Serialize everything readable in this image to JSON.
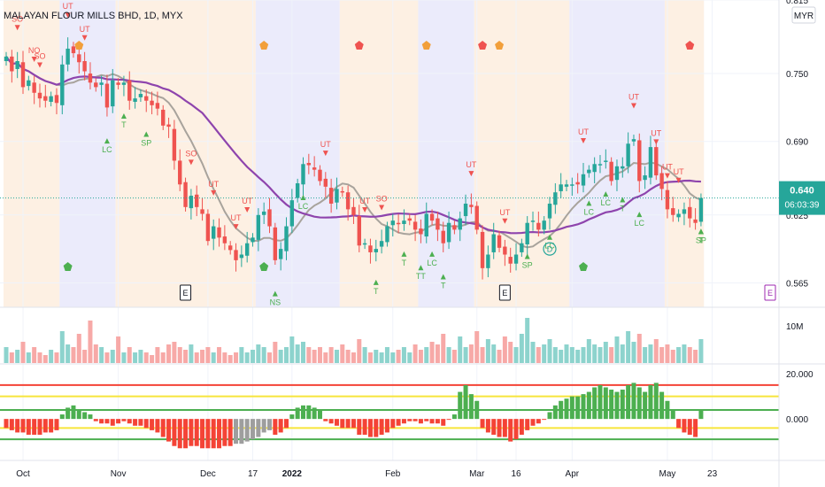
{
  "header": {
    "title": "MALAYAN FLOUR MILLS BHD, 1D, MYX",
    "currency_badge": "MYR"
  },
  "price_tag": {
    "value": "0.640",
    "countdown": "06:03:39",
    "color": "#26a69a"
  },
  "colors": {
    "up": "#26a69a",
    "down": "#ef5350",
    "ma_fast": "#a8a39c",
    "ma_slow": "#8e44ad",
    "band_orange": "#fdf0e3",
    "band_blue": "#ebebfb",
    "osc_green": "#4caf50",
    "osc_red": "#f44336",
    "osc_gray": "#9e9e9e",
    "line_red": "#f44336",
    "line_yellow": "#f7e53b",
    "line_green": "#4caf50"
  },
  "chart_data": [
    {
      "type": "candlestick",
      "panel": "price",
      "title": "MALAYAN FLOUR MILLS BHD, 1D, MYX",
      "y_ticks": [
        "0.815",
        "0.750",
        "0.690",
        "0.625",
        "0.565"
      ],
      "y_tick_values": [
        0.815,
        0.75,
        0.69,
        0.625,
        0.565
      ],
      "ylim": [
        0.545,
        0.815
      ],
      "last_value": 0.64,
      "x_tick_labels": [
        "Oct",
        "Nov",
        "Dec",
        "17",
        "2022",
        "Feb",
        "Mar",
        "16",
        "Apr",
        "May",
        "23"
      ],
      "x_tick_index": [
        3,
        20,
        36,
        44,
        51,
        69,
        84,
        91,
        101,
        118,
        126
      ],
      "close": [
        0.765,
        0.752,
        0.761,
        0.738,
        0.744,
        0.733,
        0.728,
        0.726,
        0.73,
        0.724,
        0.758,
        0.772,
        0.768,
        0.76,
        0.752,
        0.742,
        0.738,
        0.742,
        0.72,
        0.744,
        0.74,
        0.742,
        0.726,
        0.728,
        0.732,
        0.726,
        0.722,
        0.719,
        0.704,
        0.703,
        0.673,
        0.652,
        0.632,
        0.642,
        0.632,
        0.626,
        0.602,
        0.615,
        0.605,
        0.6,
        0.594,
        0.585,
        0.59,
        0.6,
        0.605,
        0.625,
        0.628,
        0.615,
        0.585,
        0.595,
        0.615,
        0.638,
        0.653,
        0.67,
        0.669,
        0.665,
        0.655,
        0.65,
        0.635,
        0.648,
        0.645,
        0.63,
        0.625,
        0.598,
        0.6,
        0.592,
        0.595,
        0.602,
        0.615,
        0.62,
        0.617,
        0.62,
        0.62,
        0.612,
        0.608,
        0.626,
        0.62,
        0.612,
        0.6,
        0.618,
        0.612,
        0.622,
        0.635,
        0.632,
        0.612,
        0.578,
        0.59,
        0.608,
        0.596,
        0.59,
        0.582,
        0.59,
        0.6,
        0.618,
        0.62,
        0.612,
        0.62,
        0.635,
        0.645,
        0.652,
        0.652,
        0.652,
        0.652,
        0.661,
        0.665,
        0.67,
        0.67,
        0.673,
        0.655,
        0.668,
        0.668,
        0.688,
        0.692,
        0.655,
        0.66,
        0.685,
        0.66,
        0.648,
        0.63,
        0.625,
        0.626,
        0.63,
        0.622,
        0.618,
        0.64
      ],
      "volume_ylim": [
        0,
        12000000
      ],
      "volume_tick": "10M",
      "volume_shape": [
        0.3,
        0.2,
        0.25,
        0.4,
        0.2,
        0.3,
        0.2,
        0.15,
        0.25,
        0.2,
        0.6,
        0.35,
        0.3,
        0.55,
        0.25,
        0.8,
        0.35,
        0.3,
        0.2,
        0.25,
        0.5,
        0.2,
        0.3,
        0.2,
        0.25,
        0.2,
        0.15,
        0.3,
        0.2,
        0.35,
        0.4,
        0.3,
        0.25,
        0.35,
        0.2,
        0.25,
        0.3,
        0.2,
        0.3,
        0.2,
        0.15,
        0.2,
        0.3,
        0.2,
        0.25,
        0.35,
        0.3,
        0.2,
        0.4,
        0.25,
        0.3,
        0.5,
        0.35,
        0.4,
        0.3,
        0.25,
        0.3,
        0.2,
        0.3,
        0.25,
        0.35,
        0.25,
        0.2,
        0.45,
        0.3,
        0.2,
        0.25,
        0.2,
        0.3,
        0.2,
        0.25,
        0.3,
        0.2,
        0.35,
        0.25,
        0.3,
        0.4,
        0.35,
        0.55,
        0.3,
        0.25,
        0.5,
        0.3,
        0.35,
        0.6,
        0.3,
        0.45,
        0.35,
        0.25,
        0.5,
        0.4,
        0.3,
        0.55,
        0.85,
        0.4,
        0.3,
        0.35,
        0.45,
        0.3,
        0.25,
        0.35,
        0.3,
        0.25,
        0.3,
        0.45,
        0.35,
        0.3,
        0.4,
        0.3,
        0.5,
        0.35,
        0.6,
        0.4,
        0.55,
        0.3,
        0.35,
        0.45,
        0.3,
        0.35,
        0.25,
        0.3,
        0.35,
        0.3,
        0.25,
        0.45
      ]
    },
    {
      "type": "bar",
      "panel": "oscillator",
      "y_ticks": [
        "20.000",
        "0.000"
      ],
      "y_tick_values": [
        20,
        0
      ],
      "ylim": [
        -18,
        24
      ],
      "reference_lines": [
        15,
        10,
        4,
        -4,
        -9
      ],
      "values": [
        -4,
        -5,
        -6,
        -6,
        -7,
        -7,
        -7,
        -6,
        -6,
        -5,
        2,
        5,
        6,
        4,
        3,
        2,
        -1,
        -2,
        -2,
        -3,
        -2,
        -1,
        -2,
        -3,
        -3,
        -4,
        -5,
        -6,
        -8,
        -10,
        -12,
        -13,
        -13,
        -12,
        -12,
        -13,
        -13,
        -13,
        -13,
        -12,
        -12,
        -11,
        -11,
        -10,
        -9,
        -8,
        -6,
        -5,
        -7,
        -6,
        -4,
        2,
        5,
        6,
        6,
        5,
        4,
        -1,
        -2,
        -3,
        -4,
        -4,
        -4,
        -7,
        -7,
        -8,
        -8,
        -7,
        -6,
        -4,
        -3,
        -2,
        -1,
        -1,
        -2,
        -1,
        -2,
        -2,
        -3,
        0,
        2,
        12,
        15,
        11,
        8,
        -4,
        -6,
        -7,
        -8,
        -8,
        -10,
        -9,
        -7,
        -5,
        -3,
        -2,
        0,
        3,
        6,
        8,
        9,
        10,
        10,
        11,
        12,
        14,
        15,
        14,
        13,
        12,
        13,
        15,
        16,
        14,
        12,
        15,
        16,
        12,
        8,
        4,
        -4,
        -6,
        -7,
        -8,
        4
      ]
    }
  ],
  "markers": {
    "labels": [
      "SO",
      "NO",
      "SO",
      "UT",
      "UT",
      "LC",
      "T",
      "SP",
      "SO",
      "UT",
      "UT",
      "UT",
      "NS",
      "LC",
      "UT",
      "UT",
      "SO",
      "T",
      "T",
      "TT",
      "LC",
      "T",
      "UT",
      "UT",
      "LC",
      "UT",
      "UT",
      "SP",
      "D",
      "LC",
      "LC",
      "T",
      "UT",
      "UT",
      "UT",
      "LC",
      "T",
      "T",
      "SP"
    ],
    "earnings_badge": "E"
  }
}
